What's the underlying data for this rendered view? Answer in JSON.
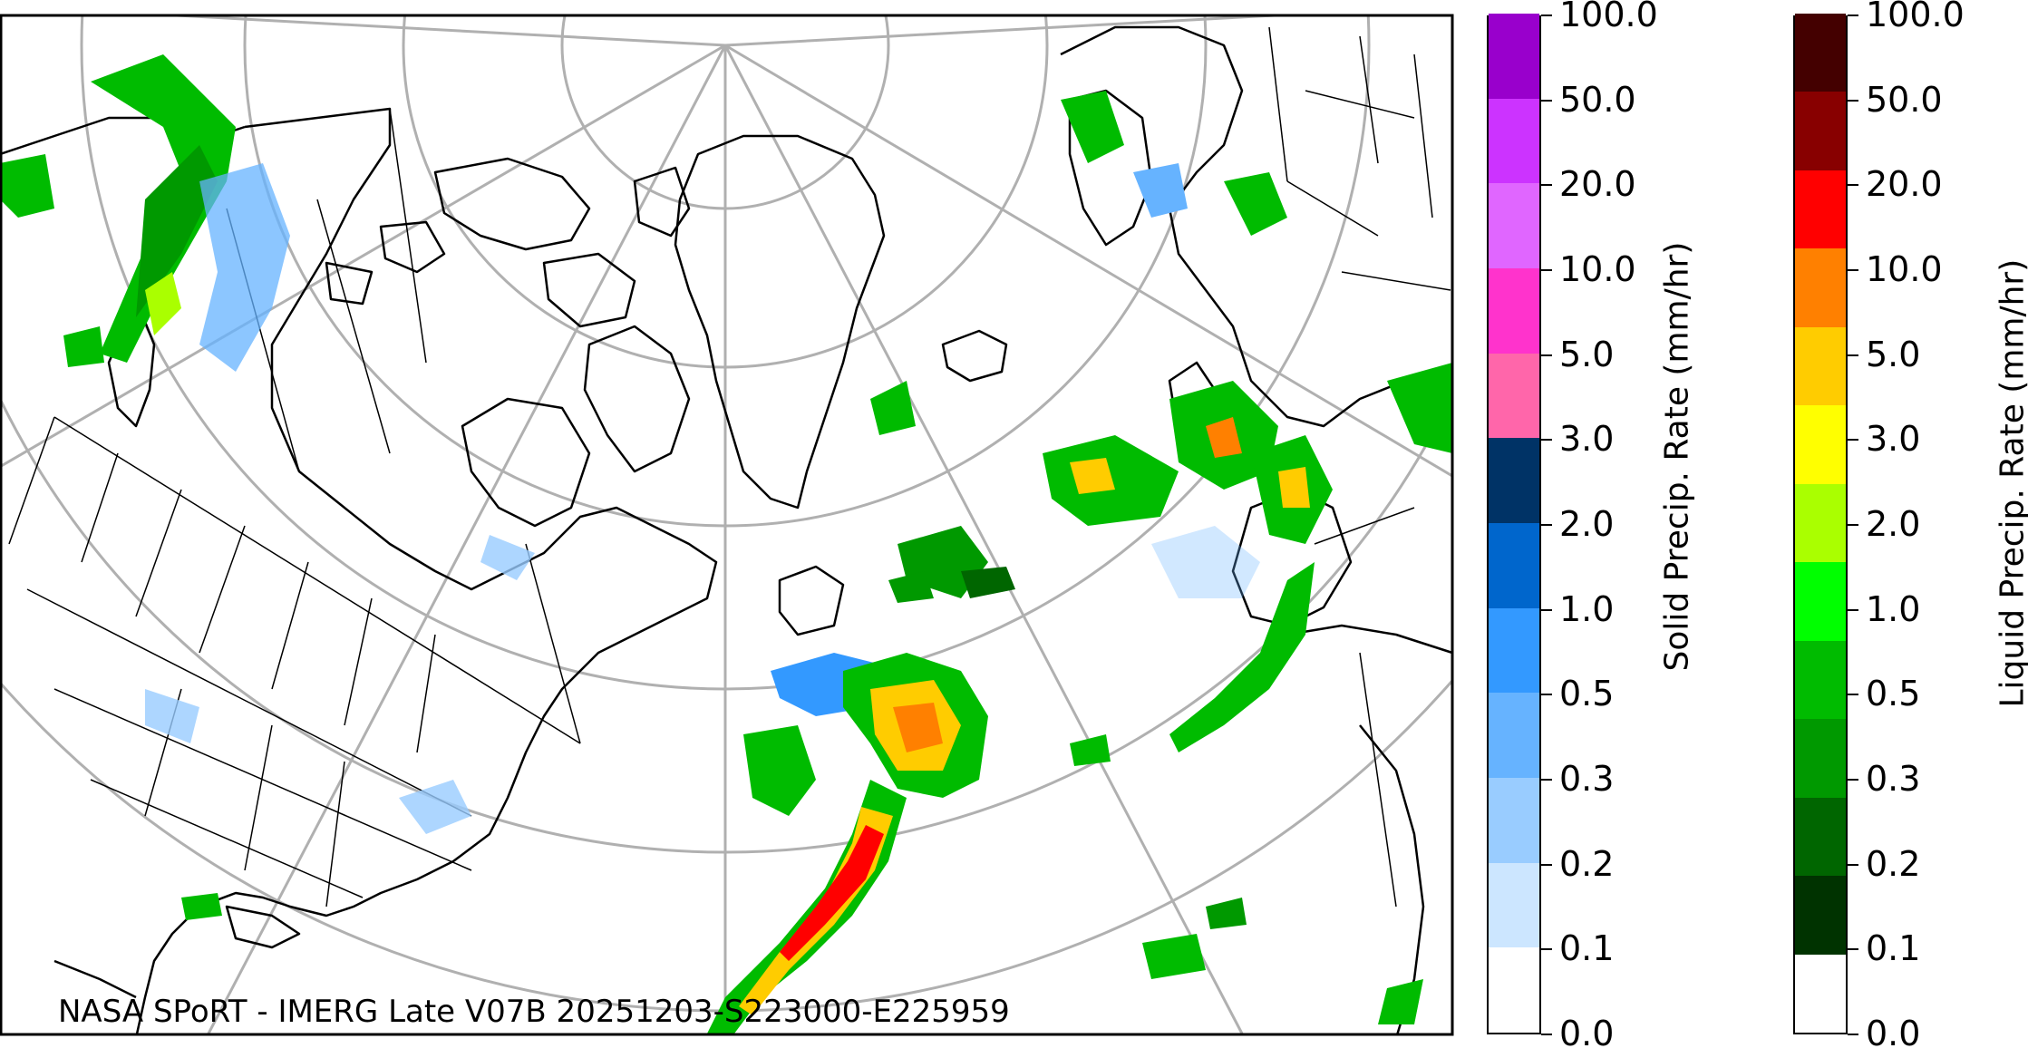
{
  "map": {
    "credit": "NASA SPoRT - IMERG Late V07B 20251203-S223000-E225959",
    "projection": "north-polar-stereographic",
    "coastline_color": "#000000",
    "graticule_color": "#b0b0b0"
  },
  "solid_colorbar": {
    "title": "Solid Precip. Rate (mm/hr)",
    "ticks": [
      "0.0",
      "0.1",
      "0.2",
      "0.3",
      "0.5",
      "1.0",
      "2.0",
      "3.0",
      "5.0",
      "10.0",
      "20.0",
      "50.0",
      "100.0"
    ],
    "colors": [
      "#ffffff",
      "#cce6ff",
      "#99ccff",
      "#66b3ff",
      "#3399ff",
      "#0066cc",
      "#003366",
      "#ff66aa",
      "#ff33cc",
      "#e066ff",
      "#cc33ff",
      "#9900cc"
    ]
  },
  "liquid_colorbar": {
    "title": "Liquid Precip. Rate (mm/hr)",
    "ticks": [
      "0.0",
      "0.1",
      "0.2",
      "0.3",
      "0.5",
      "1.0",
      "2.0",
      "3.0",
      "5.0",
      "10.0",
      "20.0",
      "50.0",
      "100.0"
    ],
    "colors": [
      "#ffffff",
      "#003300",
      "#006600",
      "#009900",
      "#00bb00",
      "#00ff00",
      "#aaff00",
      "#ffff00",
      "#ffcc00",
      "#ff8000",
      "#ff0000",
      "#880000",
      "#440000"
    ]
  }
}
